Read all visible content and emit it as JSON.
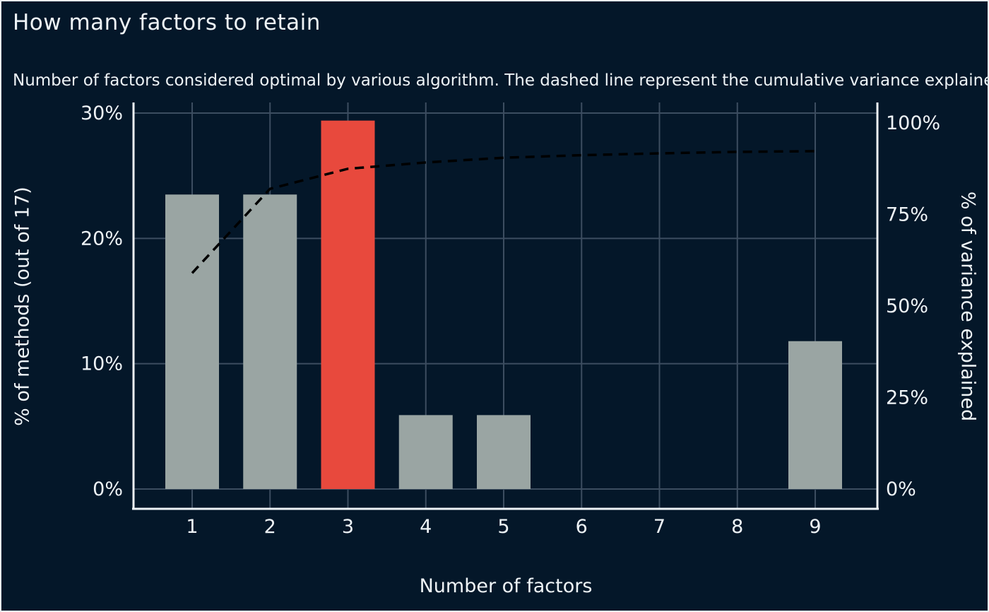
{
  "header": {
    "title": "How many factors to retain",
    "subtitle": "Number of factors considered optimal by various algorithm. The dashed line represent the cumulative variance explained"
  },
  "chart_data": {
    "type": "bar",
    "title": "How many factors to retain",
    "xlabel": "Number of factors",
    "ylabel_left": "% of methods (out of 17)",
    "ylabel_right": "% of variance explained",
    "categories": [
      "1",
      "2",
      "3",
      "4",
      "5",
      "6",
      "7",
      "8",
      "9"
    ],
    "series": [
      {
        "name": "% of methods (out of 17)",
        "type": "bar",
        "axis": "left",
        "values": [
          23.5,
          23.5,
          29.4,
          5.9,
          5.9,
          0,
          0,
          0,
          11.8
        ],
        "highlight_index": 2
      },
      {
        "name": "cumulative % of variance explained",
        "type": "line",
        "style": "dashed",
        "axis": "right",
        "values": [
          59.0,
          82.0,
          87.5,
          89.2,
          90.5,
          91.2,
          91.7,
          92.1,
          92.3
        ]
      }
    ],
    "y_axis_left": {
      "tick_labels": [
        "0%",
        "10%",
        "20%",
        "30%"
      ],
      "tick_values": [
        0,
        10,
        20,
        30
      ],
      "range": [
        0,
        30
      ]
    },
    "y_axis_right": {
      "tick_labels": [
        "0%",
        "25%",
        "50%",
        "75%",
        "100%"
      ],
      "tick_values": [
        0,
        25,
        50,
        75,
        100
      ],
      "range": [
        0,
        100
      ]
    },
    "grid": "on",
    "legend": "none",
    "colors": {
      "background": "#041729",
      "bar": "#9aa5a3",
      "bar_highlight": "#e8493d",
      "line": "#000000",
      "grid": "#3c4d60",
      "spine": "#eef3f6",
      "text": "#eef3f6"
    }
  }
}
